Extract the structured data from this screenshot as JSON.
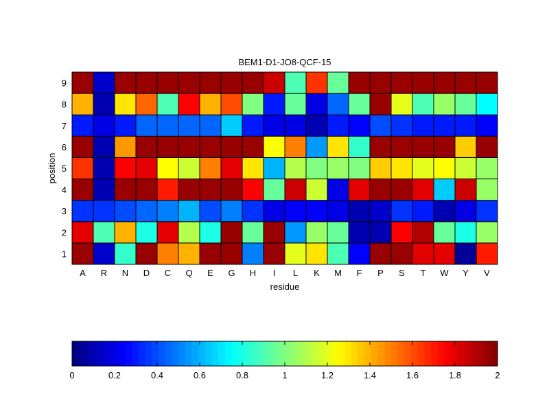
{
  "chart_data": {
    "type": "heatmap",
    "title": "BEM1-D1-JO8-QCF-15",
    "xlabel": "residue",
    "ylabel": "position",
    "x_categories": [
      "A",
      "R",
      "N",
      "D",
      "C",
      "Q",
      "E",
      "G",
      "H",
      "I",
      "L",
      "K",
      "M",
      "F",
      "P",
      "S",
      "T",
      "W",
      "Y",
      "V"
    ],
    "y_categories": [
      "1",
      "2",
      "3",
      "4",
      "5",
      "6",
      "7",
      "8",
      "9"
    ],
    "colormap": "jet",
    "color_range": [
      0,
      2
    ],
    "colorbar_ticks": [
      "0",
      "0.2",
      "0.4",
      "0.6",
      "0.8",
      "1",
      "1.2",
      "1.4",
      "1.6",
      "1.8",
      "2"
    ],
    "colorbar_position": "bottom",
    "values": [
      [
        1.95,
        0.15,
        0.85,
        1.95,
        1.5,
        1.4,
        1.95,
        1.95,
        0.5,
        1.95,
        1.2,
        1.3,
        0.9,
        0.25,
        1.95,
        1.95,
        1.8,
        1.8,
        0.05,
        1.7
      ],
      [
        1.8,
        0.9,
        1.4,
        0.8,
        1.8,
        1.1,
        0.8,
        1.95,
        0.95,
        1.95,
        0.55,
        1.05,
        0.95,
        0.1,
        0.1,
        1.75,
        1.9,
        0.95,
        0.8,
        1.05
      ],
      [
        0.35,
        0.35,
        0.4,
        0.45,
        0.5,
        0.6,
        0.4,
        0.5,
        0.35,
        0.2,
        0.25,
        0.25,
        0.2,
        0.1,
        0.15,
        0.35,
        0.3,
        0.1,
        0.2,
        0.35
      ],
      [
        1.95,
        0.1,
        1.95,
        1.95,
        1.7,
        1.95,
        1.95,
        1.95,
        1.75,
        0.95,
        1.85,
        1.15,
        0.2,
        1.8,
        1.95,
        1.95,
        1.8,
        0.65,
        1.85,
        1.05
      ],
      [
        1.65,
        0.1,
        1.75,
        1.8,
        1.25,
        1.15,
        1.5,
        1.8,
        1.3,
        0.6,
        1.1,
        1.0,
        1.05,
        1.0,
        1.35,
        1.3,
        1.2,
        1.25,
        1.15,
        1.05
      ],
      [
        1.95,
        0.1,
        1.45,
        1.95,
        1.95,
        1.95,
        1.95,
        1.95,
        1.95,
        1.25,
        1.5,
        0.55,
        1.3,
        0.85,
        1.95,
        1.95,
        1.95,
        1.95,
        1.35,
        1.95
      ],
      [
        0.3,
        0.2,
        0.3,
        0.45,
        0.45,
        0.45,
        0.45,
        0.65,
        0.3,
        0.2,
        0.2,
        0.1,
        0.3,
        0.25,
        0.4,
        0.35,
        0.3,
        0.3,
        0.3,
        0.25
      ],
      [
        1.4,
        0.1,
        1.3,
        1.55,
        0.9,
        1.75,
        1.4,
        1.6,
        1.0,
        0.3,
        0.95,
        0.2,
        0.45,
        0.95,
        1.95,
        1.2,
        0.9,
        1.05,
        0.95,
        0.75
      ],
      [
        1.95,
        0.15,
        1.95,
        1.95,
        1.95,
        1.95,
        1.95,
        1.95,
        1.95,
        1.85,
        0.9,
        1.65,
        0.95,
        1.95,
        1.95,
        1.95,
        1.95,
        1.95,
        1.95,
        1.95
      ]
    ]
  }
}
